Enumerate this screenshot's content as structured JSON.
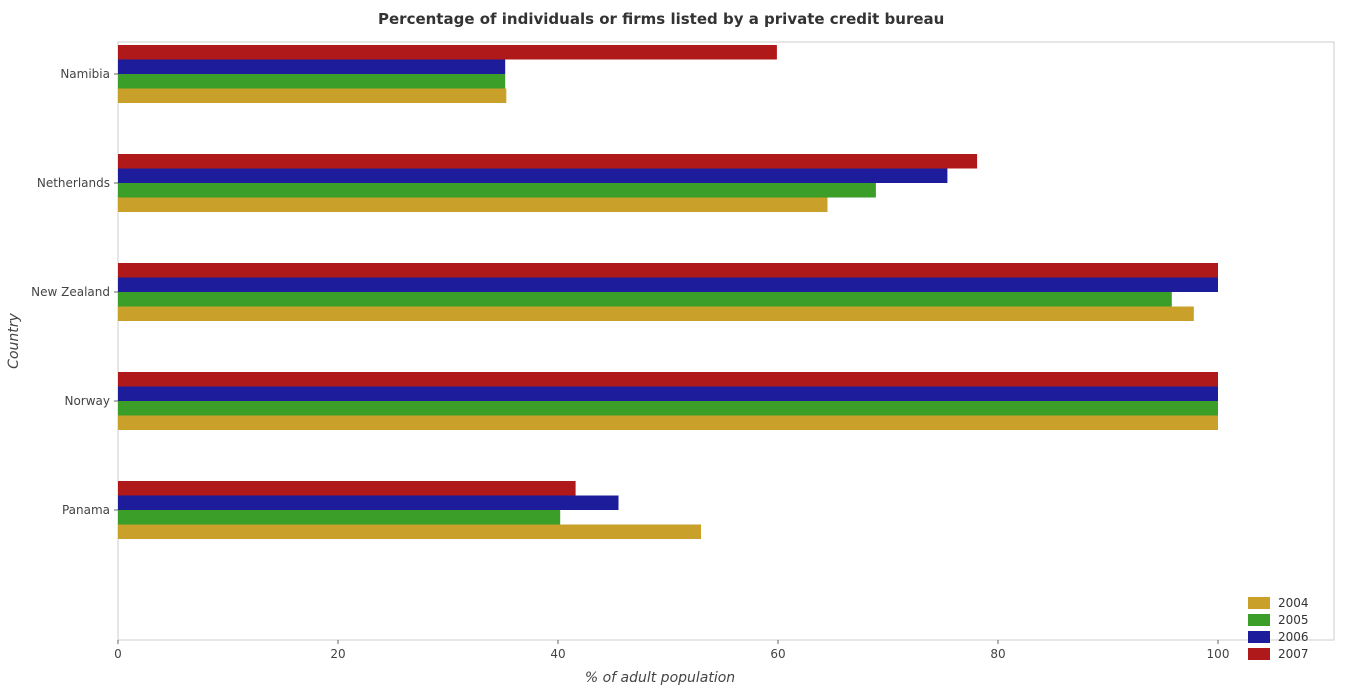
{
  "chart_data": {
    "type": "bar",
    "orientation": "horizontal",
    "title": "Percentage of individuals or firms listed by a private credit bureau",
    "xlabel": "% of adult population",
    "ylabel": "Country",
    "xlim": [
      0,
      105
    ],
    "xticks": [
      "0",
      "20",
      "40",
      "60",
      "80",
      "100"
    ],
    "grid": false,
    "legend_position": "bottom-right",
    "categories": [
      "Namibia",
      "Netherlands",
      "New Zealand",
      "Norway",
      "Panama"
    ],
    "series": [
      {
        "name": "2004",
        "color": "#c8a02a",
        "values": [
          35.3,
          64.5,
          97.8,
          100,
          53.0
        ]
      },
      {
        "name": "2005",
        "color": "#3a9e29",
        "values": [
          35.2,
          68.9,
          95.8,
          100,
          40.2
        ]
      },
      {
        "name": "2006",
        "color": "#1d1d9b",
        "values": [
          35.2,
          75.4,
          100,
          100,
          45.5
        ]
      },
      {
        "name": "2007",
        "color": "#b01919",
        "values": [
          59.9,
          78.1,
          100,
          100,
          41.6
        ]
      }
    ]
  }
}
